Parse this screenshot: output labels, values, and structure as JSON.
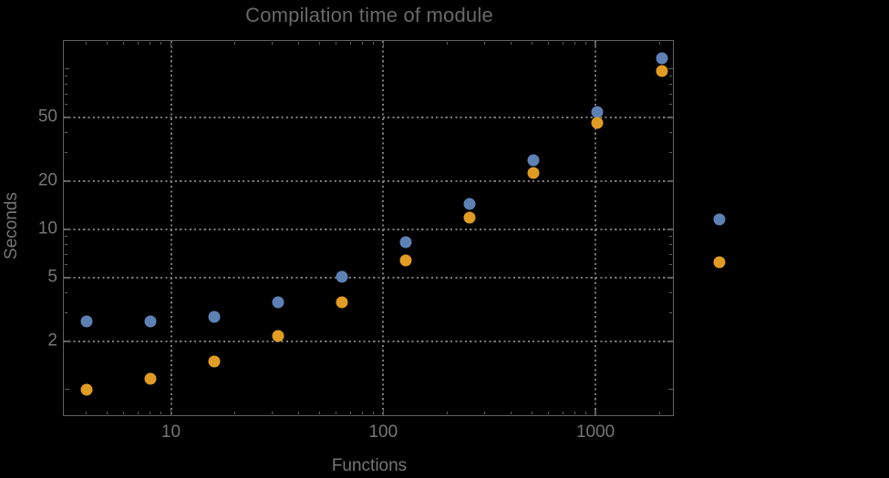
{
  "chart_data": {
    "type": "scatter",
    "title": "Compilation time of module",
    "xlabel": "Functions",
    "ylabel": "Seconds",
    "xscale": "log",
    "yscale": "log",
    "x": [
      4,
      8,
      16,
      32,
      64,
      128,
      256,
      512,
      1024,
      2048
    ],
    "series": [
      {
        "name": "series-blue",
        "color": "#5e81b5",
        "values": [
          2.65,
          2.65,
          2.85,
          3.5,
          5.05,
          8.3,
          14.3,
          27,
          54,
          117
        ]
      },
      {
        "name": "series-orange",
        "color": "#e19c24",
        "values": [
          1.0,
          1.17,
          1.5,
          2.15,
          3.5,
          6.4,
          11.8,
          22.4,
          46,
          97
        ]
      }
    ],
    "x_axis": {
      "labeled_ticks": [
        {
          "value": 10,
          "label": "10"
        },
        {
          "value": 100,
          "label": "100"
        },
        {
          "value": 1000,
          "label": "1000"
        }
      ],
      "minor_ticks": [
        4,
        5,
        6,
        7,
        8,
        9,
        20,
        30,
        40,
        50,
        60,
        70,
        80,
        90,
        200,
        300,
        400,
        500,
        600,
        700,
        800,
        900,
        2000
      ],
      "range": [
        3.1,
        2350
      ]
    },
    "y_axis": {
      "labeled_ticks": [
        {
          "value": 2,
          "label": "2"
        },
        {
          "value": 5,
          "label": "5"
        },
        {
          "value": 10,
          "label": "10"
        },
        {
          "value": 20,
          "label": "20"
        },
        {
          "value": 50,
          "label": "50"
        }
      ],
      "unlabeled_major_ticks": [
        1,
        100
      ],
      "minor_ticks": [
        3,
        4,
        6,
        7,
        8,
        9,
        30,
        40,
        60,
        70,
        80,
        90
      ],
      "range": [
        0.69,
        150
      ]
    },
    "grid": {
      "style": "dotted",
      "at": "labeled-ticks-only"
    },
    "legend": {
      "position": "outside-right",
      "entries": [
        {
          "color": "#5e81b5",
          "label": ""
        },
        {
          "color": "#e19c24",
          "label": ""
        }
      ]
    }
  },
  "colors": {
    "background": "#000000",
    "title_text": "#696969",
    "label_text": "#767676",
    "frame": "#606060",
    "grid": "#7a7a7a"
  }
}
